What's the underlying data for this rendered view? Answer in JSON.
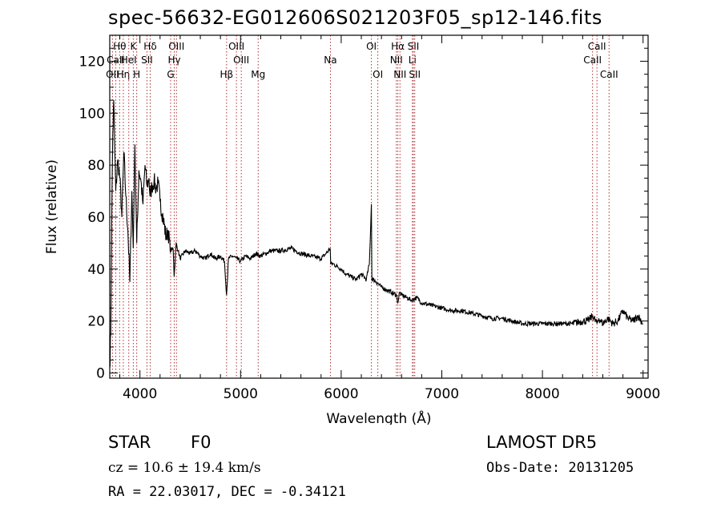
{
  "header": {
    "title": "spec-56632-EG012606S021203F05_sp12-146.fits"
  },
  "info": {
    "object_class": "STAR",
    "subclass": "F0",
    "survey": "LAMOST DR5",
    "redshift_text": "cz = 10.6 ± 19.4 km/s",
    "obs_date": "Obs-Date: 20131205",
    "coords": "RA =  22.03017, DEC =  -0.34121"
  },
  "colors": {
    "spectrum": "#000000",
    "line_markers": "#b03030",
    "axes": "#000000"
  },
  "chart_data": {
    "type": "line",
    "xlabel": "Wavelength (Å)",
    "ylabel": "Flux (relative)",
    "xlim": [
      3700,
      9050
    ],
    "ylim": [
      -2,
      130
    ],
    "x_ticks": [
      4000,
      5000,
      6000,
      7000,
      8000,
      9000
    ],
    "y_ticks": [
      0,
      20,
      40,
      60,
      80,
      100,
      120
    ],
    "grid": false,
    "series": [
      {
        "x": [
          3700,
          3710,
          3720,
          3730,
          3740,
          3750,
          3760,
          3780,
          3800,
          3820,
          3840,
          3860,
          3880,
          3900,
          3920,
          3933,
          3950,
          3968,
          3990,
          4010,
          4030,
          4050,
          4070,
          4090,
          4100,
          4120,
          4140,
          4160,
          4180,
          4200,
          4230,
          4260,
          4280,
          4300,
          4330,
          4340,
          4360,
          4380,
          4400,
          4450,
          4500,
          4550,
          4600,
          4650,
          4700,
          4750,
          4800,
          4840,
          4861,
          4880,
          4920,
          4960,
          5000,
          5050,
          5100,
          5150,
          5200,
          5300,
          5400,
          5500,
          5600,
          5700,
          5800,
          5850,
          5890,
          5896,
          5920,
          5960,
          6000,
          6050,
          6100,
          6150,
          6200,
          6250,
          6280,
          6300,
          6305,
          6320,
          6350,
          6400,
          6450,
          6500,
          6550,
          6563,
          6580,
          6600,
          6650,
          6700,
          6750,
          6800,
          6900,
          7000,
          7100,
          7200,
          7300,
          7400,
          7500,
          7600,
          7700,
          7800,
          7900,
          8000,
          8100,
          8200,
          8300,
          8400,
          8450,
          8500,
          8542,
          8560,
          8600,
          8650,
          8700,
          8750,
          8800,
          8850,
          8900,
          8950,
          9000
        ],
        "y": [
          2,
          15,
          60,
          92,
          105,
          85,
          70,
          82,
          75,
          60,
          85,
          68,
          55,
          35,
          70,
          48,
          88,
          50,
          78,
          74,
          65,
          80,
          72,
          75,
          68,
          72,
          74,
          71,
          73,
          66,
          60,
          52,
          55,
          47,
          48,
          37,
          50,
          47,
          44,
          47,
          46,
          47,
          45,
          44,
          46,
          44,
          45,
          43,
          30,
          44,
          45,
          44,
          43,
          45,
          44,
          46,
          45,
          47,
          47,
          48,
          46,
          45,
          44,
          46,
          48,
          42,
          42,
          41,
          40,
          38,
          37,
          36,
          38,
          36,
          42,
          65,
          36,
          36,
          35,
          33,
          32,
          31,
          30,
          27,
          31,
          30,
          29,
          28,
          29,
          27,
          26,
          25,
          24,
          24,
          23,
          22,
          21,
          21,
          20,
          19,
          19,
          19,
          19,
          19,
          19,
          20,
          20,
          22,
          19,
          21,
          19,
          21,
          19,
          20,
          24,
          21,
          20,
          22,
          19
        ]
      }
    ],
    "line_markers": [
      {
        "label": "OII",
        "x": 3727,
        "row": 3
      },
      {
        "label": "Hθ",
        "x": 3798,
        "row": 1
      },
      {
        "label": "Hη",
        "x": 3835,
        "row": 3
      },
      {
        "label": "CaII",
        "x": 3760,
        "row": 2
      },
      {
        "label": "HeI",
        "x": 3889,
        "row": 2
      },
      {
        "label": "K",
        "x": 3934,
        "row": 1
      },
      {
        "label": "H",
        "x": 3968,
        "row": 3
      },
      {
        "label": "Hδ",
        "x": 4102,
        "row": 1
      },
      {
        "label": "SII",
        "x": 4070,
        "row": 2
      },
      {
        "label": "OIII",
        "x": 4363,
        "row": 1
      },
      {
        "label": "Hγ",
        "x": 4341,
        "row": 2
      },
      {
        "label": "G",
        "x": 4305,
        "row": 3
      },
      {
        "label": "Hβ",
        "x": 4861,
        "row": 3
      },
      {
        "label": "OIII",
        "x": 4959,
        "row": 1
      },
      {
        "label": "OIII",
        "x": 5007,
        "row": 2
      },
      {
        "label": "Mg",
        "x": 5175,
        "row": 3
      },
      {
        "label": "Na",
        "x": 5893,
        "row": 2
      },
      {
        "label": "OI",
        "x": 6300,
        "row": 1
      },
      {
        "label": "OI",
        "x": 6364,
        "row": 3
      },
      {
        "label": "Hα",
        "x": 6563,
        "row": 1
      },
      {
        "label": "NII",
        "x": 6548,
        "row": 2
      },
      {
        "label": "NII",
        "x": 6584,
        "row": 3
      },
      {
        "label": "SII",
        "x": 6717,
        "row": 1
      },
      {
        "label": "Li",
        "x": 6708,
        "row": 2
      },
      {
        "label": "SII",
        "x": 6731,
        "row": 3
      },
      {
        "label": "CaII",
        "x": 8542,
        "row": 1
      },
      {
        "label": "CaII",
        "x": 8498,
        "row": 2
      },
      {
        "label": "CaII",
        "x": 8662,
        "row": 3
      }
    ]
  }
}
